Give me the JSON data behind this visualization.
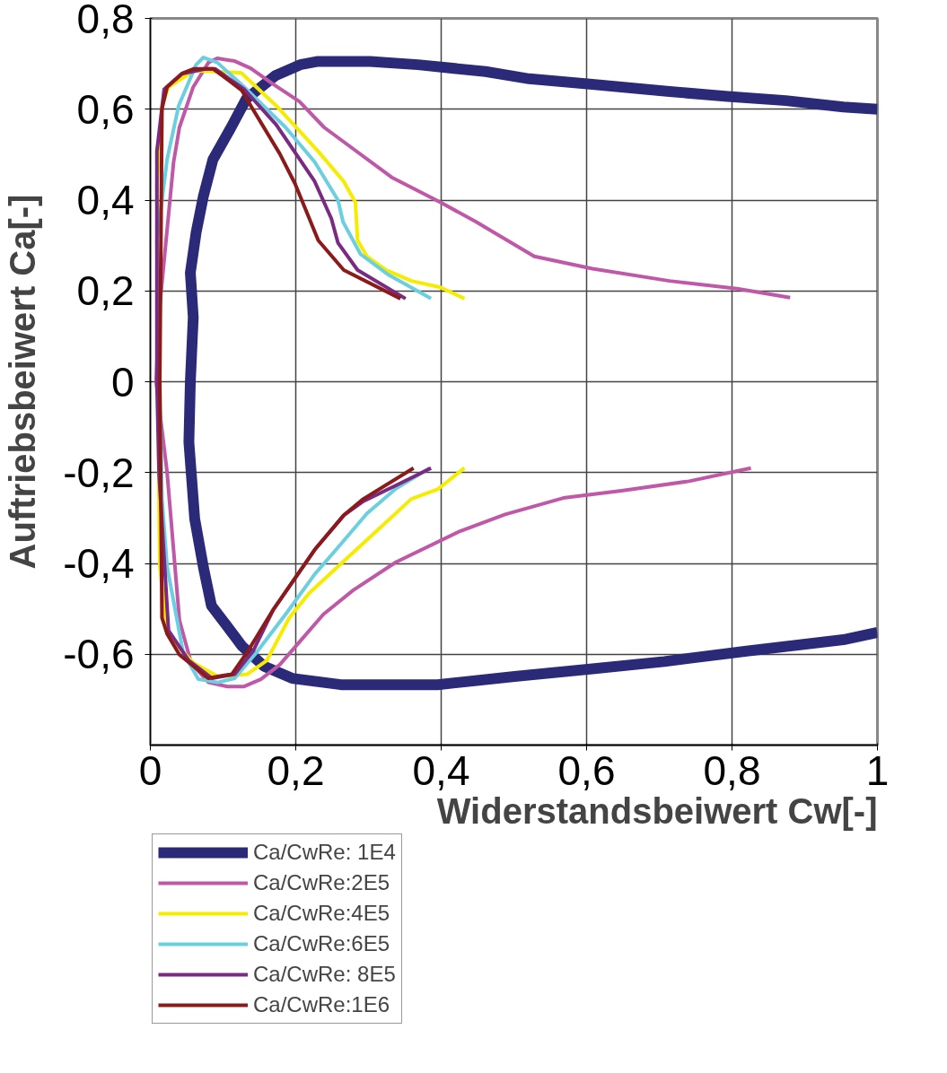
{
  "chart_data": {
    "type": "line",
    "xlabel": "Widerstandsbeiwert Cw[-]",
    "ylabel": "Auftriebsbeiwert Ca[-]",
    "xlim": [
      0,
      1
    ],
    "ylim": [
      -0.8,
      0.8
    ],
    "xticks": [
      0,
      {
        "value": 0.2,
        "label": "0,2"
      },
      {
        "value": 0.4,
        "label": "0,4"
      },
      {
        "value": 0.6,
        "label": "0,6"
      },
      {
        "value": 0.8,
        "label": "0,8"
      },
      1
    ],
    "yticks": [
      {
        "value": -0.6,
        "label": "-0,6"
      },
      {
        "value": -0.4,
        "label": "-0,4"
      },
      {
        "value": -0.2,
        "label": "-0,2"
      },
      0,
      {
        "value": 0.2,
        "label": "0,2"
      },
      {
        "value": 0.4,
        "label": "0,4"
      },
      {
        "value": 0.6,
        "label": "0,6"
      },
      {
        "value": 0.8,
        "label": "0,8"
      }
    ],
    "grid": true,
    "legend": "bottom left",
    "marker": "none",
    "line_style": "solid",
    "series": [
      {
        "name": "Ca/CwRe: 1E4",
        "color": "#2a2a78",
        "x": [
          1.0,
          0.953,
          0.82,
          0.707,
          0.608,
          0.501,
          0.395,
          0.262,
          0.195,
          0.156,
          0.126,
          0.105,
          0.084,
          0.073,
          0.061,
          0.053,
          0.055,
          0.059,
          0.055,
          0.063,
          0.073,
          0.086,
          0.11,
          0.132,
          0.172,
          0.206,
          0.229,
          0.302,
          0.368,
          0.461,
          0.521,
          0.608,
          0.714,
          0.794,
          0.874,
          0.953,
          1.0
        ],
        "values": [
          -0.552,
          -0.568,
          -0.593,
          -0.616,
          -0.632,
          -0.649,
          -0.667,
          -0.667,
          -0.653,
          -0.626,
          -0.582,
          -0.537,
          -0.493,
          -0.409,
          -0.302,
          -0.133,
          0.0,
          0.142,
          0.24,
          0.329,
          0.409,
          0.489,
          0.557,
          0.623,
          0.674,
          0.698,
          0.705,
          0.705,
          0.698,
          0.683,
          0.667,
          0.655,
          0.639,
          0.628,
          0.619,
          0.605,
          0.6
        ]
      },
      {
        "name": "Ca/CwRe:2E5",
        "color": "#c058a8",
        "x": [
          0.826,
          0.741,
          0.648,
          0.568,
          0.488,
          0.426,
          0.338,
          0.279,
          0.238,
          0.205,
          0.178,
          0.152,
          0.129,
          0.106,
          0.08,
          0.056,
          0.04,
          0.023,
          0.008,
          0.012,
          0.032,
          0.04,
          0.059,
          0.08,
          0.092,
          0.116,
          0.138,
          0.169,
          0.205,
          0.239,
          0.332,
          0.399,
          0.448,
          0.528,
          0.608,
          0.714,
          0.807,
          0.88
        ],
        "values": [
          -0.19,
          -0.219,
          -0.24,
          -0.256,
          -0.292,
          -0.329,
          -0.397,
          -0.459,
          -0.512,
          -0.573,
          -0.623,
          -0.655,
          -0.671,
          -0.671,
          -0.662,
          -0.619,
          -0.525,
          -0.199,
          0.0,
          0.151,
          0.484,
          0.56,
          0.649,
          0.703,
          0.712,
          0.706,
          0.69,
          0.655,
          0.617,
          0.56,
          0.45,
          0.395,
          0.352,
          0.276,
          0.249,
          0.222,
          0.205,
          0.185
        ]
      },
      {
        "name": "Ca/CwRe:4E5",
        "color": "#f5ec00",
        "x": [
          0.432,
          0.395,
          0.359,
          0.311,
          0.266,
          0.218,
          0.191,
          0.16,
          0.133,
          0.093,
          0.059,
          0.023,
          0.013,
          0.012,
          0.009,
          0.016,
          0.025,
          0.06,
          0.116,
          0.125,
          0.173,
          0.231,
          0.266,
          0.282,
          0.285,
          0.298,
          0.324,
          0.359,
          0.399,
          0.432
        ],
        "values": [
          -0.19,
          -0.237,
          -0.258,
          -0.329,
          -0.395,
          -0.466,
          -0.52,
          -0.614,
          -0.644,
          -0.649,
          -0.619,
          -0.555,
          -0.406,
          -0.288,
          0.436,
          0.608,
          0.649,
          0.685,
          0.681,
          0.68,
          0.608,
          0.507,
          0.441,
          0.395,
          0.311,
          0.276,
          0.246,
          0.222,
          0.208,
          0.183
        ]
      },
      {
        "name": "Ca/CwRe:6E5",
        "color": "#6ccfe0",
        "x": [
          0.384,
          0.338,
          0.298,
          0.258,
          0.226,
          0.186,
          0.146,
          0.116,
          0.093,
          0.066,
          0.045,
          0.023,
          0.016,
          0.009,
          0.023,
          0.039,
          0.063,
          0.073,
          0.092,
          0.129,
          0.186,
          0.226,
          0.258,
          0.265,
          0.289,
          0.328,
          0.386
        ],
        "values": [
          -0.19,
          -0.235,
          -0.29,
          -0.365,
          -0.424,
          -0.512,
          -0.596,
          -0.653,
          -0.662,
          -0.655,
          -0.596,
          -0.406,
          -0.258,
          0.311,
          0.489,
          0.608,
          0.698,
          0.714,
          0.703,
          0.649,
          0.56,
          0.484,
          0.4,
          0.352,
          0.281,
          0.235,
          0.183
        ]
      },
      {
        "name": "Ca/CwRe: 8E5",
        "color": "#7b2a82",
        "x": [
          0.386,
          0.338,
          0.293,
          0.266,
          0.226,
          0.169,
          0.142,
          0.116,
          0.085,
          0.053,
          0.025,
          0.012,
          0.009,
          0.009,
          0.019,
          0.043,
          0.076,
          0.089,
          0.129,
          0.173,
          0.226,
          0.249,
          0.258,
          0.285,
          0.351
        ],
        "values": [
          -0.19,
          -0.228,
          -0.263,
          -0.294,
          -0.37,
          -0.502,
          -0.591,
          -0.644,
          -0.653,
          -0.614,
          -0.548,
          -0.205,
          0.0,
          0.507,
          0.644,
          0.678,
          0.689,
          0.689,
          0.644,
          0.566,
          0.441,
          0.359,
          0.306,
          0.246,
          0.183
        ]
      },
      {
        "name": "Ca/CwRe:1E6",
        "color": "#8b1a1a",
        "x": [
          0.362,
          0.293,
          0.266,
          0.226,
          0.169,
          0.133,
          0.112,
          0.093,
          0.08,
          0.04,
          0.023,
          0.016,
          0.013,
          0.016,
          0.023,
          0.045,
          0.06,
          0.086,
          0.1,
          0.126,
          0.138,
          0.178,
          0.199,
          0.231,
          0.266,
          0.344
        ],
        "values": [
          -0.19,
          -0.258,
          -0.294,
          -0.37,
          -0.502,
          -0.596,
          -0.644,
          -0.649,
          -0.653,
          -0.601,
          -0.555,
          -0.52,
          0.0,
          0.601,
          0.649,
          0.68,
          0.689,
          0.689,
          0.673,
          0.641,
          0.608,
          0.502,
          0.436,
          0.311,
          0.246,
          0.183
        ]
      }
    ]
  }
}
